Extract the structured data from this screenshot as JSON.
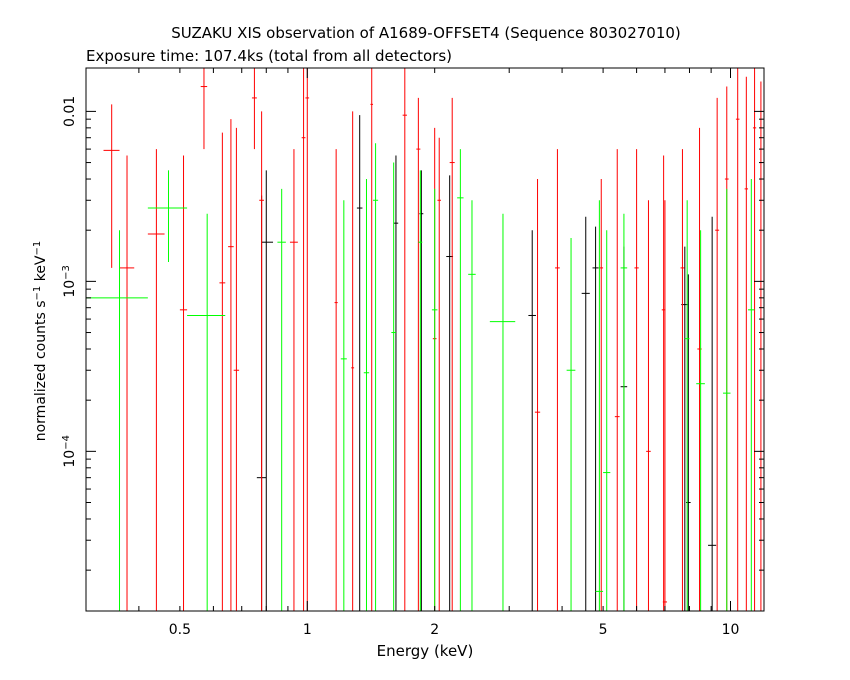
{
  "chart_data": {
    "type": "scatter",
    "title": "SUZAKU XIS observation of A1689-OFFSET4 (Sequence 803027010)",
    "subtitle": "Exposure time: 107.4ks (total from all detectors)",
    "xlabel": "Energy (keV)",
    "ylabel": "normalized counts s-1 keV-1",
    "x_scale": "log",
    "y_scale": "log",
    "xlim": [
      0.3,
      12
    ],
    "ylim": [
      1.15e-05,
      0.018
    ],
    "x_ticks": [
      {
        "value": 0.5,
        "label": "0.5"
      },
      {
        "value": 1,
        "label": "1"
      },
      {
        "value": 2,
        "label": "2"
      },
      {
        "value": 5,
        "label": "5"
      },
      {
        "value": 10,
        "label": "10"
      }
    ],
    "y_ticks": [
      {
        "value": 0.0001,
        "base": "10",
        "exp": "−4"
      },
      {
        "value": 0.001,
        "base": "10",
        "exp": "−3"
      },
      {
        "value": 0.01,
        "base": "0.01",
        "exp": ""
      }
    ],
    "grid": false,
    "series": [
      {
        "color": "#000000",
        "points": [
          {
            "x": 0.8,
            "y": 0.0017,
            "xlo": 0.78,
            "xhi": 0.83,
            "ylo": 1.15e-05,
            "yhi": 0.0045
          },
          {
            "x": 0.78,
            "y": 7e-05,
            "xlo": 0.76,
            "xhi": 0.8,
            "ylo": 1.15e-05,
            "yhi": 0.0032
          },
          {
            "x": 1.33,
            "y": 0.0027,
            "xlo": 1.31,
            "xhi": 1.35,
            "ylo": 1.15e-05,
            "yhi": 0.0095
          },
          {
            "x": 1.62,
            "y": 0.0022,
            "xlo": 1.6,
            "xhi": 1.64,
            "ylo": 1.15e-05,
            "yhi": 0.0055
          },
          {
            "x": 1.86,
            "y": 0.0025,
            "xlo": 1.84,
            "xhi": 1.88,
            "ylo": 1.15e-05,
            "yhi": 0.0045
          },
          {
            "x": 2.17,
            "y": 0.0014,
            "xlo": 2.13,
            "xhi": 2.21,
            "ylo": 1.15e-05,
            "yhi": 0.0042
          },
          {
            "x": 3.4,
            "y": 0.00063,
            "xlo": 3.33,
            "xhi": 3.47,
            "ylo": 1.15e-05,
            "yhi": 0.002
          },
          {
            "x": 4.55,
            "y": 0.00085,
            "xlo": 4.45,
            "xhi": 4.65,
            "ylo": 1.15e-05,
            "yhi": 0.0024
          },
          {
            "x": 4.8,
            "y": 0.0012,
            "xlo": 4.72,
            "xhi": 4.88,
            "ylo": 1.15e-05,
            "yhi": 0.0021
          },
          {
            "x": 5.6,
            "y": 0.00024,
            "xlo": 5.5,
            "xhi": 5.7,
            "ylo": 1.15e-05,
            "yhi": 0.0016
          },
          {
            "x": 7.8,
            "y": 0.00073,
            "xlo": 7.65,
            "xhi": 7.95,
            "ylo": 1.15e-05,
            "yhi": 0.0016
          },
          {
            "x": 7.95,
            "y": 5e-05,
            "xlo": 7.85,
            "xhi": 8.05,
            "ylo": 1.15e-05,
            "yhi": 0.0011
          },
          {
            "x": 9.05,
            "y": 2.8e-05,
            "xlo": 8.85,
            "xhi": 9.25,
            "ylo": 1.15e-05,
            "yhi": 0.0024
          }
        ]
      },
      {
        "color": "#ff0000",
        "points": [
          {
            "x": 0.345,
            "y": 0.0059,
            "xlo": 0.33,
            "xhi": 0.36,
            "ylo": 0.0012,
            "yhi": 0.011
          },
          {
            "x": 0.375,
            "y": 0.0012,
            "xlo": 0.36,
            "xhi": 0.39,
            "ylo": 1.15e-05,
            "yhi": 0.0055
          },
          {
            "x": 0.44,
            "y": 0.0019,
            "xlo": 0.42,
            "xhi": 0.46,
            "ylo": 1.15e-05,
            "yhi": 0.006
          },
          {
            "x": 0.51,
            "y": 0.00068,
            "xlo": 0.5,
            "xhi": 0.52,
            "ylo": 1.15e-05,
            "yhi": 0.0055
          },
          {
            "x": 0.57,
            "y": 0.014,
            "xlo": 0.56,
            "xhi": 0.58,
            "ylo": 0.006,
            "yhi": 0.018
          },
          {
            "x": 0.63,
            "y": 0.00098,
            "xlo": 0.62,
            "xhi": 0.64,
            "ylo": 1.15e-05,
            "yhi": 0.0075
          },
          {
            "x": 0.66,
            "y": 0.0016,
            "xlo": 0.65,
            "xhi": 0.67,
            "ylo": 1.15e-05,
            "yhi": 0.009
          },
          {
            "x": 0.68,
            "y": 0.0003,
            "xlo": 0.67,
            "xhi": 0.69,
            "ylo": 1.15e-05,
            "yhi": 0.008
          },
          {
            "x": 0.75,
            "y": 0.012,
            "xlo": 0.74,
            "xhi": 0.76,
            "ylo": 0.006,
            "yhi": 0.018
          },
          {
            "x": 0.78,
            "y": 0.003,
            "xlo": 0.77,
            "xhi": 0.79,
            "ylo": 1.15e-05,
            "yhi": 0.01
          },
          {
            "x": 0.93,
            "y": 0.0017,
            "xlo": 0.91,
            "xhi": 0.95,
            "ylo": 1.15e-05,
            "yhi": 0.006
          },
          {
            "x": 0.98,
            "y": 0.007,
            "xlo": 0.97,
            "xhi": 0.99,
            "ylo": 1.15e-05,
            "yhi": 0.018
          },
          {
            "x": 1.0,
            "y": 0.012,
            "xlo": 0.99,
            "xhi": 1.01,
            "ylo": 1.15e-05,
            "yhi": 0.018
          },
          {
            "x": 1.17,
            "y": 0.00075,
            "xlo": 1.16,
            "xhi": 1.18,
            "ylo": 1.15e-05,
            "yhi": 0.006
          },
          {
            "x": 1.28,
            "y": 0.00031,
            "xlo": 1.27,
            "xhi": 1.29,
            "ylo": 1.15e-05,
            "yhi": 0.01
          },
          {
            "x": 1.42,
            "y": 0.011,
            "xlo": 1.41,
            "xhi": 1.43,
            "ylo": 1.15e-05,
            "yhi": 0.018
          },
          {
            "x": 1.7,
            "y": 0.0095,
            "xlo": 1.68,
            "xhi": 1.72,
            "ylo": 1.15e-05,
            "yhi": 0.018
          },
          {
            "x": 1.83,
            "y": 0.006,
            "xlo": 1.81,
            "xhi": 1.85,
            "ylo": 1.15e-05,
            "yhi": 0.012
          },
          {
            "x": 2.0,
            "y": 0.00046,
            "xlo": 1.98,
            "xhi": 2.02,
            "ylo": 1.15e-05,
            "yhi": 0.008
          },
          {
            "x": 2.05,
            "y": 0.003,
            "xlo": 2.03,
            "xhi": 2.07,
            "ylo": 1.15e-05,
            "yhi": 0.007
          },
          {
            "x": 2.2,
            "y": 0.005,
            "xlo": 2.17,
            "xhi": 2.23,
            "ylo": 1.15e-05,
            "yhi": 0.012
          },
          {
            "x": 3.5,
            "y": 0.00017,
            "xlo": 3.45,
            "xhi": 3.55,
            "ylo": 1.15e-05,
            "yhi": 0.004
          },
          {
            "x": 3.9,
            "y": 0.0012,
            "xlo": 3.85,
            "xhi": 3.95,
            "ylo": 1.15e-05,
            "yhi": 0.006
          },
          {
            "x": 4.95,
            "y": 0.0012,
            "xlo": 4.9,
            "xhi": 5.0,
            "ylo": 1.15e-05,
            "yhi": 0.004
          },
          {
            "x": 5.4,
            "y": 0.00016,
            "xlo": 5.33,
            "xhi": 5.47,
            "ylo": 1.15e-05,
            "yhi": 0.006
          },
          {
            "x": 6.0,
            "y": 0.0012,
            "xlo": 5.93,
            "xhi": 6.07,
            "ylo": 1.15e-05,
            "yhi": 0.006
          },
          {
            "x": 6.4,
            "y": 0.0001,
            "xlo": 6.32,
            "xhi": 6.48,
            "ylo": 1.15e-05,
            "yhi": 0.003
          },
          {
            "x": 6.95,
            "y": 0.00068,
            "xlo": 6.88,
            "xhi": 7.02,
            "ylo": 1.15e-05,
            "yhi": 0.0055
          },
          {
            "x": 7.0,
            "y": 1.3e-05,
            "xlo": 6.92,
            "xhi": 7.08,
            "ylo": 1.15e-05,
            "yhi": 0.003
          },
          {
            "x": 7.7,
            "y": 0.0012,
            "xlo": 7.62,
            "xhi": 7.78,
            "ylo": 1.15e-05,
            "yhi": 0.006
          },
          {
            "x": 8.45,
            "y": 0.0004,
            "xlo": 8.35,
            "xhi": 8.55,
            "ylo": 1.15e-05,
            "yhi": 0.008
          },
          {
            "x": 9.3,
            "y": 0.002,
            "xlo": 9.2,
            "xhi": 9.4,
            "ylo": 1.15e-05,
            "yhi": 0.012
          },
          {
            "x": 9.8,
            "y": 0.004,
            "xlo": 9.7,
            "xhi": 9.9,
            "ylo": 1.15e-05,
            "yhi": 0.014
          },
          {
            "x": 10.4,
            "y": 0.009,
            "xlo": 10.3,
            "xhi": 10.5,
            "ylo": 1.15e-05,
            "yhi": 0.018
          },
          {
            "x": 10.9,
            "y": 0.0035,
            "xlo": 10.8,
            "xhi": 11.0,
            "ylo": 1.15e-05,
            "yhi": 0.016
          },
          {
            "x": 11.4,
            "y": 0.008,
            "xlo": 11.3,
            "xhi": 11.5,
            "ylo": 1.15e-05,
            "yhi": 0.018
          },
          {
            "x": 11.8,
            "y": 0.005,
            "xlo": 11.7,
            "xhi": 11.9,
            "ylo": 1.15e-05,
            "yhi": 0.015
          }
        ]
      },
      {
        "color": "#00ff00",
        "points": [
          {
            "x": 0.36,
            "y": 0.0008,
            "xlo": 0.3,
            "xhi": 0.42,
            "ylo": 1.15e-05,
            "yhi": 0.002
          },
          {
            "x": 0.47,
            "y": 0.0027,
            "xlo": 0.42,
            "xhi": 0.52,
            "ylo": 0.0013,
            "yhi": 0.0045
          },
          {
            "x": 0.58,
            "y": 0.00063,
            "xlo": 0.52,
            "xhi": 0.64,
            "ylo": 1.15e-05,
            "yhi": 0.0025
          },
          {
            "x": 0.87,
            "y": 0.0017,
            "xlo": 0.85,
            "xhi": 0.89,
            "ylo": 1.15e-05,
            "yhi": 0.0035
          },
          {
            "x": 1.22,
            "y": 0.00035,
            "xlo": 1.2,
            "xhi": 1.24,
            "ylo": 1.15e-05,
            "yhi": 0.003
          },
          {
            "x": 1.38,
            "y": 0.00029,
            "xlo": 1.36,
            "xhi": 1.4,
            "ylo": 1.15e-05,
            "yhi": 0.004
          },
          {
            "x": 1.45,
            "y": 0.003,
            "xlo": 1.43,
            "xhi": 1.47,
            "ylo": 1.15e-05,
            "yhi": 0.0065
          },
          {
            "x": 1.6,
            "y": 0.0005,
            "xlo": 1.58,
            "xhi": 1.62,
            "ylo": 1.15e-05,
            "yhi": 0.005
          },
          {
            "x": 1.85,
            "y": 0.0017,
            "xlo": 1.83,
            "xhi": 1.87,
            "ylo": 1.15e-05,
            "yhi": 0.0045
          },
          {
            "x": 2.0,
            "y": 0.00068,
            "xlo": 1.97,
            "xhi": 2.03,
            "ylo": 1.15e-05,
            "yhi": 0.0035
          },
          {
            "x": 2.3,
            "y": 0.0031,
            "xlo": 2.26,
            "xhi": 2.34,
            "ylo": 1.15e-05,
            "yhi": 0.006
          },
          {
            "x": 2.45,
            "y": 0.0011,
            "xlo": 2.4,
            "xhi": 2.5,
            "ylo": 1.15e-05,
            "yhi": 0.003
          },
          {
            "x": 2.9,
            "y": 0.00058,
            "xlo": 2.7,
            "xhi": 3.1,
            "ylo": 1.15e-05,
            "yhi": 0.0025
          },
          {
            "x": 4.2,
            "y": 0.0003,
            "xlo": 4.1,
            "xhi": 4.3,
            "ylo": 1.15e-05,
            "yhi": 0.0018
          },
          {
            "x": 4.9,
            "y": 1.5e-05,
            "xlo": 4.8,
            "xhi": 5.0,
            "ylo": 1.15e-05,
            "yhi": 0.003
          },
          {
            "x": 5.1,
            "y": 7.5e-05,
            "xlo": 5.0,
            "xhi": 5.2,
            "ylo": 1.15e-05,
            "yhi": 0.002
          },
          {
            "x": 5.6,
            "y": 0.0012,
            "xlo": 5.5,
            "xhi": 5.7,
            "ylo": 1.15e-05,
            "yhi": 0.0025
          },
          {
            "x": 7.9,
            "y": 0.00046,
            "xlo": 7.8,
            "xhi": 8.0,
            "ylo": 1.15e-05,
            "yhi": 0.003
          },
          {
            "x": 8.5,
            "y": 0.00025,
            "xlo": 8.3,
            "xhi": 8.7,
            "ylo": 1.15e-05,
            "yhi": 0.002
          },
          {
            "x": 9.8,
            "y": 0.00022,
            "xlo": 9.6,
            "xhi": 10.0,
            "ylo": 1.15e-05,
            "yhi": 0.0035
          },
          {
            "x": 11.2,
            "y": 0.00068,
            "xlo": 11.0,
            "xhi": 11.4,
            "ylo": 1.15e-05,
            "yhi": 0.004
          }
        ]
      }
    ]
  }
}
